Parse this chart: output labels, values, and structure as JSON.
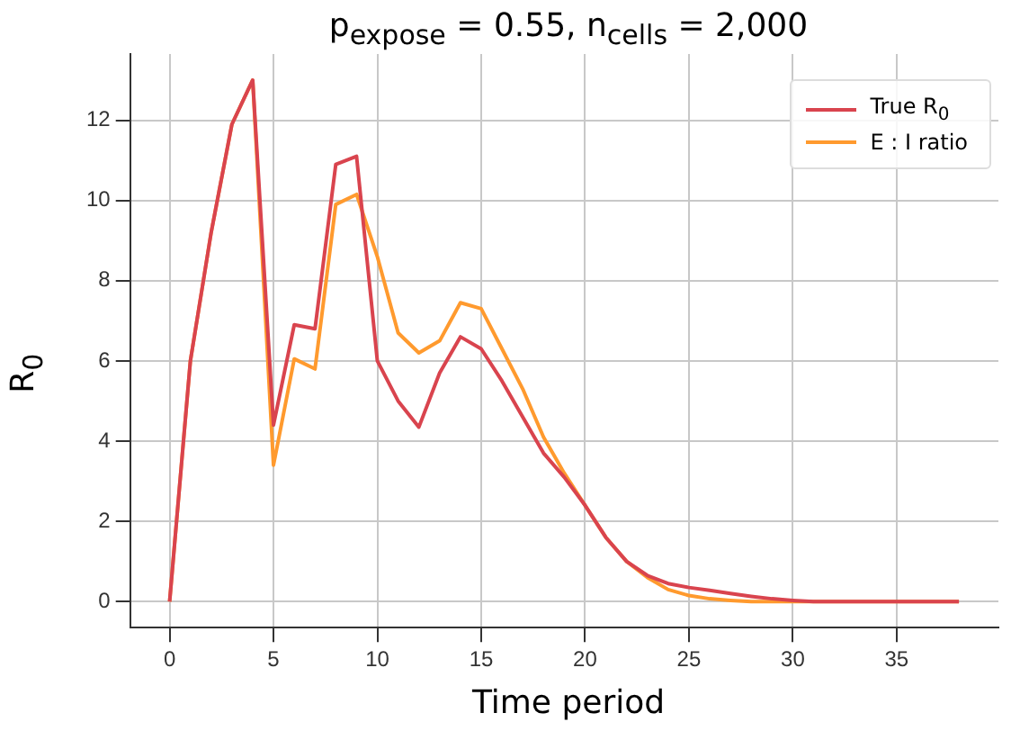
{
  "chart_data": {
    "type": "line",
    "title": "p$_{expose}$ = 0.55, n$_{cells}$ = 2,000",
    "xlabel": "Time period",
    "ylabel": "R$_{0}$",
    "x": [
      0,
      1,
      2,
      3,
      4,
      5,
      6,
      7,
      8,
      9,
      10,
      11,
      12,
      13,
      14,
      15,
      16,
      17,
      18,
      19,
      20,
      21,
      22,
      23,
      24,
      25,
      26,
      27,
      28,
      29,
      30,
      31,
      32,
      33,
      34,
      35,
      36,
      37,
      38
    ],
    "series": [
      {
        "name": "True R$_{0}$",
        "color": "#d9444e",
        "values": [
          0,
          6,
          9.2,
          11.9,
          13,
          4.4,
          6.9,
          6.8,
          10.9,
          11.1,
          6.0,
          5.0,
          4.35,
          5.7,
          6.6,
          6.3,
          5.5,
          4.6,
          3.7,
          3.1,
          2.4,
          1.6,
          1.0,
          0.65,
          0.45,
          0.35,
          0.28,
          0.2,
          0.13,
          0.07,
          0.03,
          0,
          0,
          0,
          0,
          0,
          0,
          0,
          0
        ]
      },
      {
        "name": "E : I ratio",
        "color": "#ff9a2e",
        "values": [
          0,
          6,
          9.2,
          11.9,
          13,
          3.4,
          6.05,
          5.8,
          9.9,
          10.15,
          8.6,
          6.7,
          6.2,
          6.5,
          7.45,
          7.3,
          6.3,
          5.3,
          4.1,
          3.2,
          2.4,
          1.6,
          1.0,
          0.6,
          0.3,
          0.15,
          0.07,
          0.03,
          0,
          0,
          0,
          0,
          0,
          0,
          0,
          0,
          0,
          0,
          0
        ]
      }
    ],
    "xlim": [
      -1.9,
      39.9
    ],
    "xticks": [
      0,
      5,
      10,
      15,
      20,
      25,
      30,
      35
    ],
    "ylim": [
      -0.65,
      13.65
    ],
    "yticks": [
      0,
      2,
      4,
      6,
      8,
      10,
      12
    ],
    "grid": true,
    "legend": "top right",
    "marker": "none",
    "line_style": "solid"
  }
}
